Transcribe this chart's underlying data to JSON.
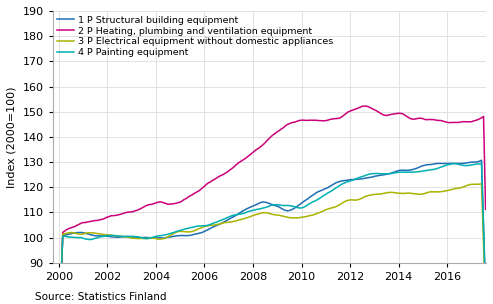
{
  "title": "",
  "ylabel": "Index (2000=100)",
  "xlabel": "",
  "source": "Source: Statistics Finland",
  "ylim": [
    90,
    190
  ],
  "yticks": [
    90,
    100,
    110,
    120,
    130,
    140,
    150,
    160,
    170,
    180,
    190
  ],
  "xticks": [
    2000,
    2002,
    2004,
    2006,
    2008,
    2010,
    2012,
    2014,
    2016
  ],
  "xmin": 1999.75,
  "xmax": 2017.6,
  "series": [
    {
      "label": "1 P Structural building equipment",
      "color": "#1f6eb5",
      "linewidth": 1.1
    },
    {
      "label": "2 P Heating, plumbing and ventilation equipment",
      "color": "#cc007a",
      "linewidth": 1.1
    },
    {
      "label": "3 P Electrical equipment without domestic appliances",
      "color": "#aab300",
      "linewidth": 1.1
    },
    {
      "label": "4 P Painting equipment",
      "color": "#00b0b0",
      "linewidth": 1.1
    }
  ],
  "legend_fontsize": 6.8,
  "axis_fontsize": 8,
  "tick_fontsize": 8,
  "source_fontsize": 7.5,
  "grid_color": "#dddddd",
  "background_color": "#ffffff"
}
